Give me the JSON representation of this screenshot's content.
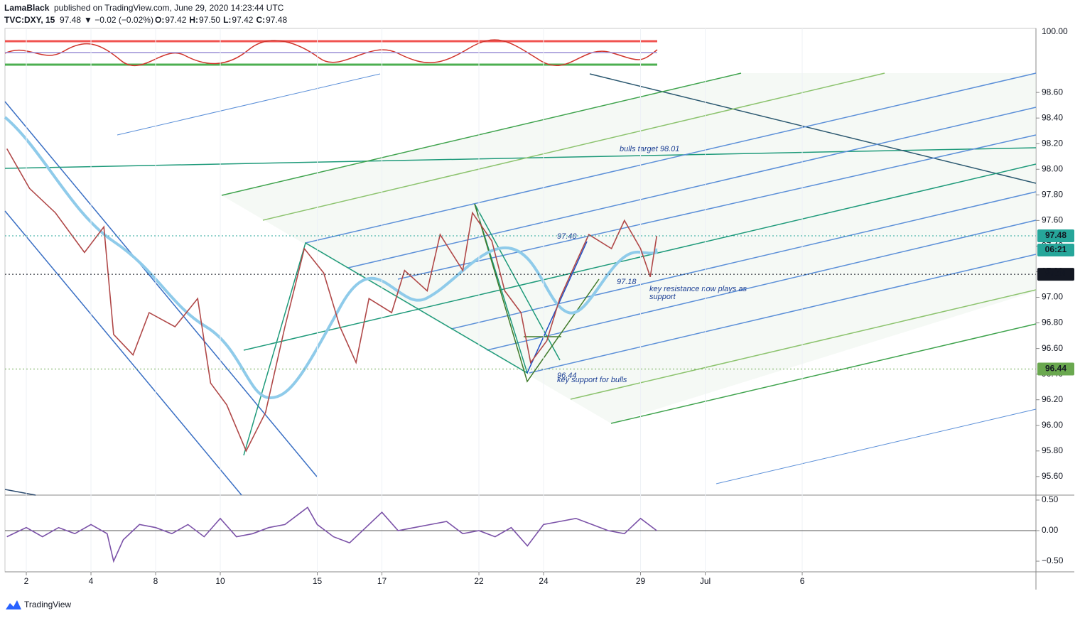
{
  "header": {
    "author": "LamaBlack",
    "published": "published on TradingView.com, June 29, 2020 14:23:44 UTC",
    "symbol": "TVC:DXY, 15",
    "last": "97.48",
    "change": "▼ −0.02 (−0.02%)",
    "ohlc": [
      {
        "label": "O:",
        "value": "97.42"
      },
      {
        "label": "H:",
        "value": "97.50"
      },
      {
        "label": "L:",
        "value": "97.42"
      },
      {
        "label": "C:",
        "value": "97.48"
      }
    ]
  },
  "chart_data": [
    {
      "type": "line",
      "color": "#b04848",
      "x": [
        -0.6,
        0.1,
        0.9,
        1.8,
        2.4,
        2.7,
        3.3,
        3.8,
        4.6,
        5.3,
        5.7,
        6.2,
        6.8,
        7.4,
        8.0,
        8.6,
        9.2,
        9.7,
        10.2,
        10.6,
        11.3,
        11.7,
        12.4,
        12.8,
        13.5,
        13.8,
        14.4,
        14.8,
        15.3,
        15.6,
        16.1,
        16.5,
        17.0,
        17.4,
        18.1,
        18.5,
        19.0,
        19.3,
        19.5
      ],
      "values": [
        98.16,
        97.85,
        97.66,
        97.35,
        97.55,
        96.71,
        96.55,
        96.88,
        96.77,
        96.99,
        96.33,
        96.16,
        95.8,
        96.1,
        96.77,
        97.38,
        97.19,
        96.77,
        96.49,
        96.99,
        96.88,
        97.21,
        97.05,
        97.49,
        97.21,
        97.66,
        97.44,
        97.05,
        96.88,
        96.49,
        96.66,
        96.99,
        97.27,
        97.49,
        97.38,
        97.6,
        97.38,
        97.16,
        97.48
      ],
      "xlim": [
        -0.66,
        31.23
      ],
      "xticks": [
        {
          "value": 0,
          "label": "2"
        },
        {
          "value": 2,
          "label": "4"
        },
        {
          "value": 4,
          "label": "8"
        },
        {
          "value": 6,
          "label": "10"
        },
        {
          "value": 9,
          "label": "15"
        },
        {
          "value": 11,
          "label": "17"
        },
        {
          "value": 14,
          "label": "22"
        },
        {
          "value": 16,
          "label": "24"
        },
        {
          "value": 19,
          "label": "29"
        },
        {
          "value": 21,
          "label": "Jul"
        },
        {
          "value": 24,
          "label": "6"
        }
      ],
      "ylim": [
        95.455,
        99.1
      ],
      "yticks": [
        {
          "value": 95.6,
          "label": "95.60"
        },
        {
          "value": 95.8,
          "label": "95.80"
        },
        {
          "value": 96,
          "label": "96.00"
        },
        {
          "value": 96.2,
          "label": "96.20"
        },
        {
          "value": 96.4,
          "label": "96.40"
        },
        {
          "value": 96.6,
          "label": "96.60"
        },
        {
          "value": 96.8,
          "label": "96.80"
        },
        {
          "value": 97,
          "label": "97.00"
        },
        {
          "value": 97.2,
          "label": "97.20"
        },
        {
          "value": 97.4,
          "label": "97.40"
        },
        {
          "value": 97.6,
          "label": "97.60"
        },
        {
          "value": 97.8,
          "label": "97.80"
        },
        {
          "value": 98,
          "label": "98.00"
        },
        {
          "value": 98.2,
          "label": "98.20"
        },
        {
          "value": 98.4,
          "label": "98.40"
        },
        {
          "value": 98.6,
          "label": "98.60"
        }
      ],
      "overlay_tick": {
        "value": 100,
        "label": "100.00"
      },
      "price_markers": [
        {
          "value": 97.48,
          "color": "#26a69a"
        },
        {
          "value": 97.18,
          "color": "#131722"
        },
        {
          "value": 96.44,
          "color": "#6aa84f"
        }
      ],
      "countdown": "06:21",
      "annotations": [
        "bulls target  98.01",
        "97.40",
        "97.18",
        "key resistance now plays as",
        "support",
        "96.44",
        "key support for bulls"
      ]
    },
    {
      "type": "line",
      "color": "#7b52a8",
      "x": [
        -0.6,
        0,
        0.5,
        1,
        1.5,
        2,
        2.5,
        2.7,
        3,
        3.5,
        4,
        4.5,
        5,
        5.5,
        6,
        6.5,
        7,
        7.5,
        8,
        8.5,
        8.7,
        9,
        9.5,
        10,
        10.5,
        11,
        11.5,
        12,
        12.5,
        13,
        13.5,
        14,
        14.5,
        15,
        15.5,
        16,
        16.5,
        17,
        17.5,
        18,
        18.5,
        19,
        19.5
      ],
      "values": [
        -0.1,
        0.05,
        -0.1,
        0.05,
        -0.05,
        0.1,
        -0.05,
        -0.5,
        -0.15,
        0.1,
        0.05,
        -0.05,
        0.1,
        -0.1,
        0.2,
        -0.1,
        -0.05,
        0.05,
        0.1,
        0.3,
        0.38,
        0.1,
        -0.1,
        -0.2,
        0.05,
        0.3,
        0.0,
        0.05,
        0.1,
        0.15,
        -0.05,
        0.0,
        -0.1,
        0.05,
        -0.25,
        0.1,
        0.15,
        0.2,
        0.1,
        0.0,
        -0.05,
        0.2,
        0.0
      ],
      "xlim": [
        -0.66,
        31.23
      ],
      "ylim": [
        -0.674,
        0.581
      ],
      "yticks": [
        {
          "value": 0.5,
          "label": "0.50"
        },
        {
          "value": 0,
          "label": "0.00"
        },
        {
          "value": -0.5,
          "label": "−0.50"
        }
      ]
    }
  ],
  "footer": {
    "brand": "TradingView"
  }
}
